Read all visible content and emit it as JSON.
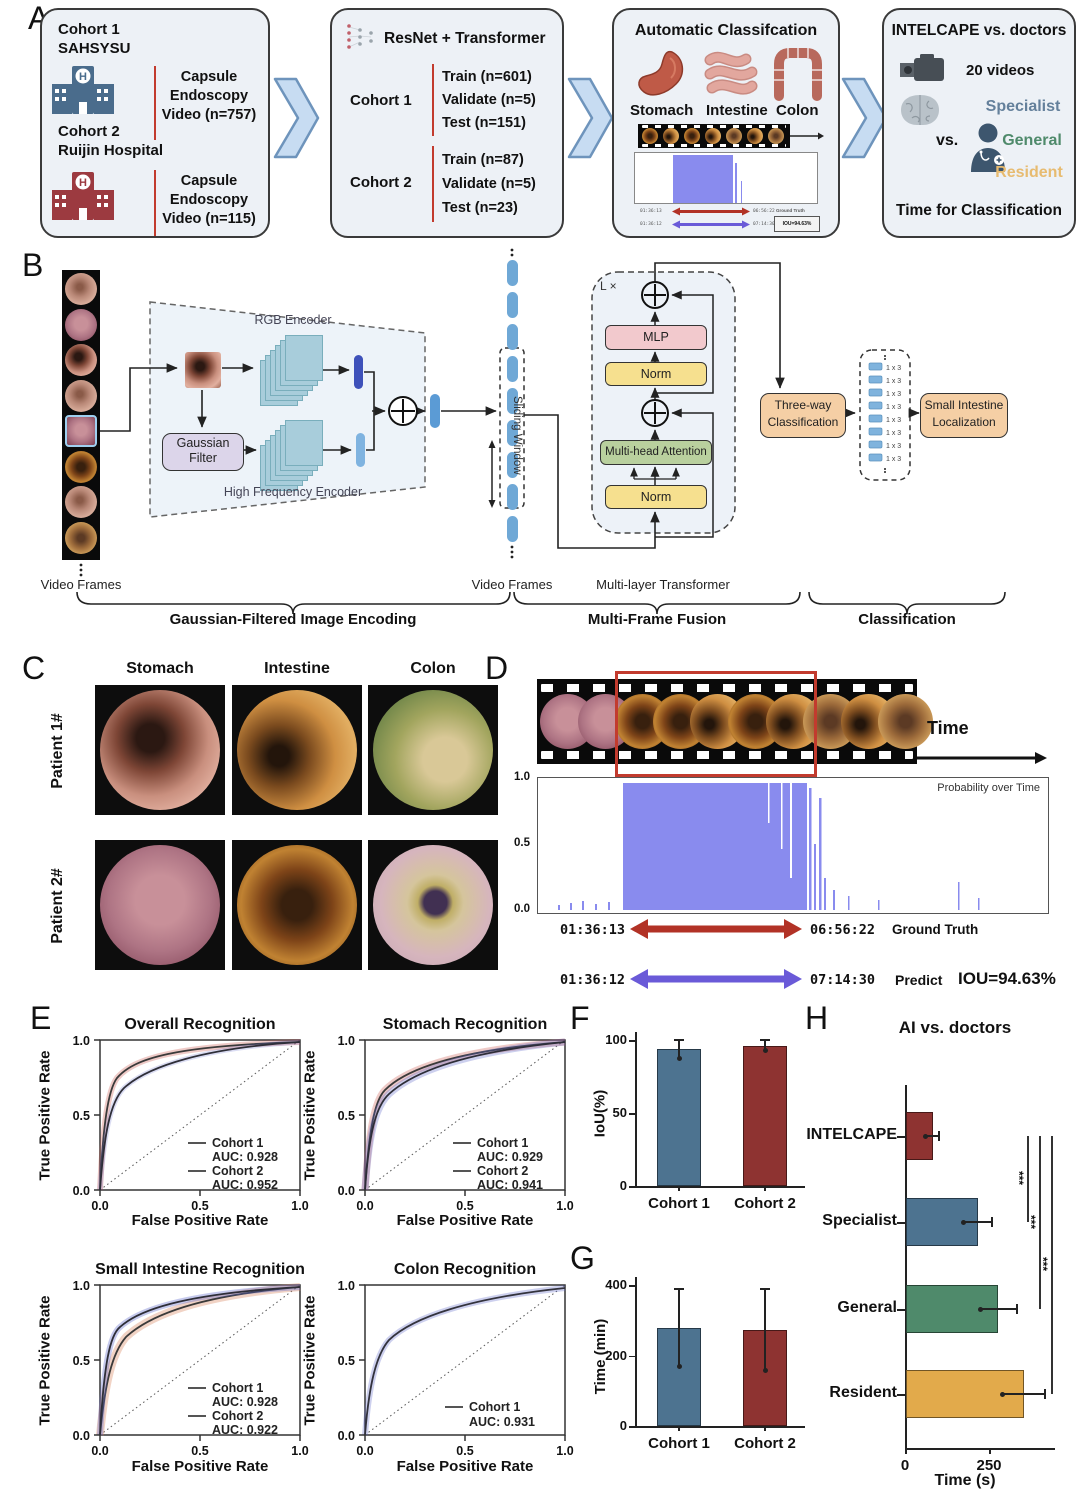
{
  "figure": {
    "panel_letters": {
      "a": "A",
      "b": "B",
      "c": "C",
      "d": "D",
      "e": "E",
      "f": "F",
      "g": "G",
      "h": "H"
    }
  },
  "colors": {
    "cohort1": "#4d7390",
    "cohort2": "#8e3331",
    "intelcape": "#8e3331",
    "specialist": "#4d7390",
    "general": "#4f8a6b",
    "resident": "#e2aa4b",
    "ground_truth": "#b23226",
    "predict": "#6a5ad8",
    "probability": "#898bee",
    "panel_box_bg": "#edf1f6",
    "chevron": "#c7dcf2"
  },
  "panel_a": {
    "cohorts_box": {
      "cohort1_title": "Cohort 1",
      "cohort1_site": "SAHSYSU",
      "cohort1_video": "Capsule Endoscopy Video (n=757)",
      "cohort2_title": "Cohort 2",
      "cohort2_site": "Ruijin Hospital",
      "cohort2_video": "Capsule Endoscopy Video (n=115)",
      "hospital_letter": "H"
    },
    "model_box": {
      "title": "ResNet + Transformer",
      "cohort1_label": "Cohort 1",
      "cohort1_splits": [
        "Train (n=601)",
        "Validate (n=5)",
        "Test (n=151)"
      ],
      "cohort2_label": "Cohort 2",
      "cohort2_splits": [
        "Train (n=87)",
        "Validate (n=5)",
        "Test (n=23)"
      ]
    },
    "classification_box": {
      "title": "Automatic Classifcation",
      "organs": [
        "Stomach",
        "Intestine",
        "Colon"
      ],
      "mini_iou": "IOU=94.63%"
    },
    "comparison_box": {
      "title": "INTELCAPE vs. doctors",
      "videos": "20 videos",
      "vs": "vs.",
      "doctor_levels": [
        {
          "label": "Specialist",
          "color": "#64809b"
        },
        {
          "label": "General",
          "color": "#4f8a6b"
        },
        {
          "label": "Resident",
          "color": "#e7bb70"
        }
      ],
      "footer": "Time for Classification"
    }
  },
  "panel_b": {
    "video_frames_left": "Video Frames",
    "video_frames_mid": "Video Frames",
    "rgb_encoder": "RGB Encoder",
    "gaussian_filter_line1": "Gaussian",
    "gaussian_filter_line2": "Filter",
    "hf_encoder": "High Frequency Encoder",
    "sliding_window": "Sliding Window",
    "transformer": {
      "loop": "L ×",
      "mlp": "MLP",
      "norm1": "Norm",
      "mha": "Multi-head Attention",
      "norm2": "Norm",
      "caption": "Multi-layer Transformer"
    },
    "three_way_line1": "Three-way",
    "three_way_line2": "Classification",
    "vector_label": "1 x 3",
    "localization_line1": "Small Intestine",
    "localization_line2": "Localization",
    "stages": [
      "Gaussian-Filtered Image Encoding",
      "Multi-Frame Fusion",
      "Classification"
    ]
  },
  "panel_c": {
    "columns": [
      "Stomach",
      "Intestine",
      "Colon"
    ],
    "rows": [
      "Patient 1#",
      "Patient 2#"
    ]
  },
  "panel_d": {
    "time_label": "Time",
    "prob_title": "Probability over Time",
    "yticks": [
      "1.0",
      "0.5",
      "0.0"
    ],
    "ground_truth": {
      "start": "01:36:13",
      "end": "06:56:22",
      "label": "Ground Truth"
    },
    "predict": {
      "start": "01:36:12",
      "end": "07:14:30",
      "label": "Predict",
      "iou": "IOU=94.63%"
    }
  },
  "panel_e": {
    "xlabel": "False Positive Rate",
    "ylabel": "True Positive Rate",
    "ticks": [
      "0.0",
      "0.5",
      "1.0"
    ]
  },
  "chart_data": [
    {
      "id": "roc_overall",
      "type": "line",
      "title": "Overall Recognition",
      "xlabel": "False Positive Rate",
      "ylabel": "True Positive Rate",
      "xlim": [
        0,
        1
      ],
      "ylim": [
        0,
        1
      ],
      "series": [
        {
          "name": "Cohort 1",
          "auc": 0.928,
          "auc_label": "AUC: 0.928"
        },
        {
          "name": "Cohort 2",
          "auc": 0.952,
          "auc_label": "AUC: 0.952"
        }
      ]
    },
    {
      "id": "roc_stomach",
      "type": "line",
      "title": "Stomach Recognition",
      "xlabel": "False Positive Rate",
      "ylabel": "True Positive Rate",
      "xlim": [
        0,
        1
      ],
      "ylim": [
        0,
        1
      ],
      "series": [
        {
          "name": "Cohort 1",
          "auc": 0.929,
          "auc_label": "AUC: 0.929"
        },
        {
          "name": "Cohort 2",
          "auc": 0.941,
          "auc_label": "AUC: 0.941"
        }
      ]
    },
    {
      "id": "roc_small_intestine",
      "type": "line",
      "title": "Small Intestine Recognition",
      "xlabel": "False Positive Rate",
      "ylabel": "True Positive Rate",
      "xlim": [
        0,
        1
      ],
      "ylim": [
        0,
        1
      ],
      "series": [
        {
          "name": "Cohort 1",
          "auc": 0.928,
          "auc_label": "AUC: 0.928"
        },
        {
          "name": "Cohort 2",
          "auc": 0.922,
          "auc_label": "AUC: 0.922"
        }
      ]
    },
    {
      "id": "roc_colon",
      "type": "line",
      "title": "Colon Recognition",
      "xlabel": "False Positive Rate",
      "ylabel": "True Positive Rate",
      "xlim": [
        0,
        1
      ],
      "ylim": [
        0,
        1
      ],
      "series": [
        {
          "name": "Cohort 1",
          "auc": 0.931,
          "auc_label": "AUC: 0.931"
        }
      ]
    },
    {
      "id": "iou",
      "type": "bar",
      "title": "",
      "categories": [
        "Cohort 1",
        "Cohort 2"
      ],
      "values": [
        94,
        96
      ],
      "errors_low": [
        87,
        93
      ],
      "errors_high": [
        100,
        100
      ],
      "ylabel": "IoU(%)",
      "ylim": [
        0,
        100
      ],
      "yticks": [
        "0",
        "50",
        "100"
      ],
      "colors": [
        "#4d7390",
        "#8e3331"
      ]
    },
    {
      "id": "time",
      "type": "bar",
      "title": "",
      "categories": [
        "Cohort 1",
        "Cohort 2"
      ],
      "values": [
        278,
        272
      ],
      "errors_low": [
        170,
        158
      ],
      "errors_high": [
        388,
        390
      ],
      "ylabel": "Time (min)",
      "ylim": [
        0,
        400
      ],
      "yticks": [
        "0",
        "200",
        "400"
      ],
      "colors": [
        "#4d7390",
        "#8e3331"
      ]
    },
    {
      "id": "ai_vs_doctors",
      "type": "bar",
      "orientation": "horizontal",
      "title": "AI vs. doctors",
      "categories": [
        "INTELCAPE",
        "Specialist",
        "General",
        "Resident"
      ],
      "values": [
        80,
        214,
        274,
        351
      ],
      "errors_low": [
        60,
        175,
        225,
        290
      ],
      "errors_high": [
        100,
        259,
        333,
        417
      ],
      "xlabel": "Time (s)",
      "xlim": [
        0,
        430
      ],
      "xticks": [
        "0",
        "250"
      ],
      "colors": [
        "#8e3331",
        "#4d7390",
        "#4f8a6b",
        "#e2aa4b"
      ],
      "significance": [
        "***",
        "***",
        "***"
      ]
    }
  ]
}
